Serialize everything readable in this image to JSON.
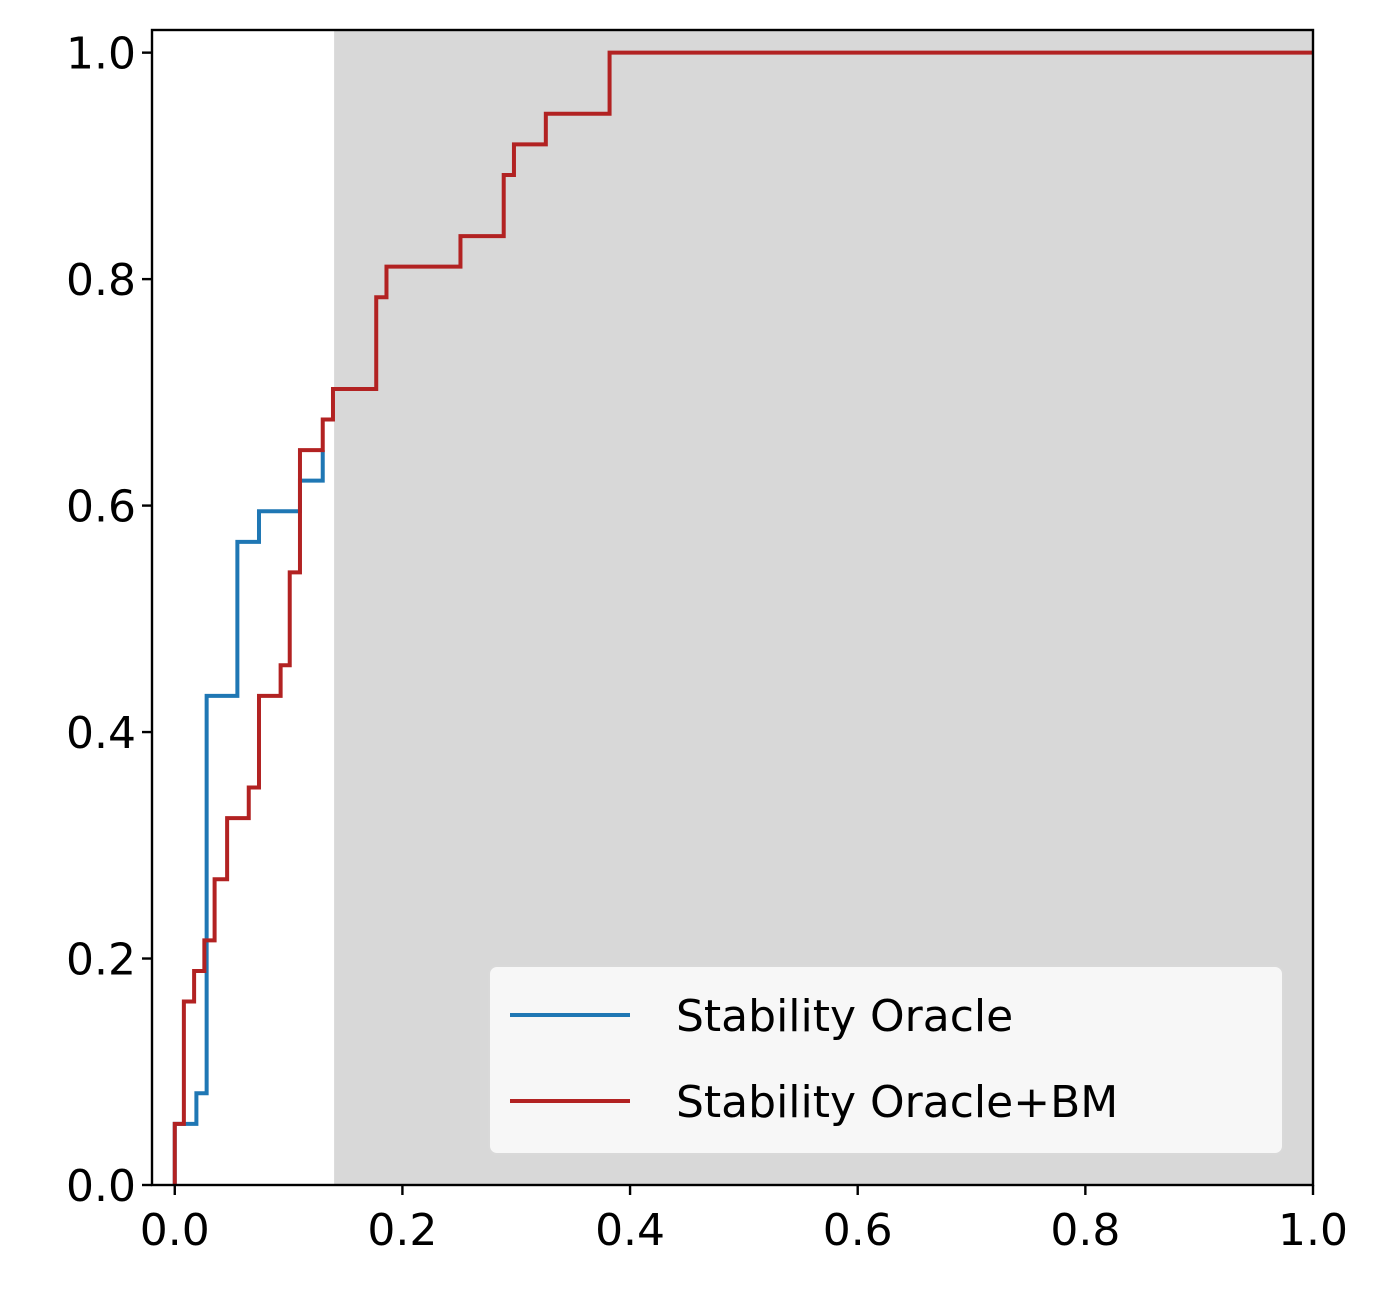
{
  "chart_data": {
    "type": "line",
    "step": "post",
    "xlim": [
      -0.02,
      1.0
    ],
    "ylim": [
      0.0,
      1.02
    ],
    "xticks": [
      "0.0",
      "0.2",
      "0.4",
      "0.6",
      "0.8",
      "1.0"
    ],
    "yticks": [
      "0.0",
      "0.2",
      "0.4",
      "0.6",
      "0.8",
      "1.0"
    ],
    "shaded_region": {
      "x_from": 0.14,
      "x_to": 1.0,
      "color": "#d8d8d8"
    },
    "legend_position": "lower-right",
    "series": [
      {
        "name": "Stability Oracle",
        "color": "#1f77b4",
        "x": [
          0.0,
          0.0,
          0.012,
          0.019,
          0.028,
          0.055,
          0.074,
          0.11,
          0.13
        ],
        "y": [
          0.0,
          0.054,
          0.054,
          0.081,
          0.432,
          0.568,
          0.595,
          0.622,
          0.649
        ]
      },
      {
        "name": "Stability Oracle+BM",
        "color": "#b22222",
        "x": [
          0.0,
          0.0,
          0.008,
          0.017,
          0.026,
          0.035,
          0.046,
          0.065,
          0.074,
          0.093,
          0.101,
          0.11,
          0.13,
          0.139,
          0.177,
          0.186,
          0.251,
          0.289,
          0.298,
          0.326,
          0.382,
          1.0
        ],
        "y": [
          0.0,
          0.054,
          0.162,
          0.189,
          0.216,
          0.27,
          0.324,
          0.351,
          0.432,
          0.459,
          0.541,
          0.649,
          0.676,
          0.703,
          0.784,
          0.811,
          0.838,
          0.892,
          0.919,
          0.946,
          1.0,
          1.0
        ]
      }
    ]
  }
}
